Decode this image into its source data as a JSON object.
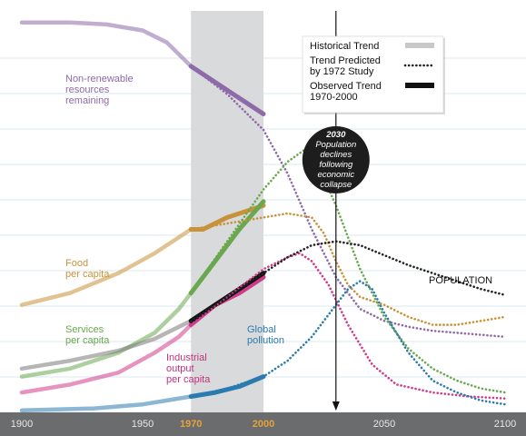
{
  "chart_data": {
    "type": "line",
    "x_range": [
      1900,
      2100
    ],
    "x_ticks": [
      {
        "value": 1900,
        "label": "1900",
        "highlight": false
      },
      {
        "value": 1950,
        "label": "1950",
        "highlight": false
      },
      {
        "value": 1970,
        "label": "1970",
        "highlight": true
      },
      {
        "value": 2000,
        "label": "2000",
        "highlight": true
      },
      {
        "value": 2050,
        "label": "2050",
        "highlight": false
      },
      {
        "value": 2100,
        "label": "2100",
        "highlight": false
      }
    ],
    "y_range": [
      0,
      100
    ],
    "grid": "horizontal",
    "shaded_period": [
      1970,
      2000
    ],
    "marker_year": 2030,
    "legend": {
      "position": "top-right",
      "items": [
        {
          "label": "Historical Trend",
          "style": "historical",
          "color": "#c8c8c8"
        },
        {
          "label": "Trend Predicted by 1972 Study",
          "style": "predicted",
          "color": "#222222"
        },
        {
          "label": "Observed Trend 1970-2000",
          "style": "observed",
          "color": "#111111"
        }
      ]
    },
    "callout": {
      "year_label": "2030",
      "lines": [
        "Population",
        "declines",
        "following",
        "economic",
        "collapse"
      ]
    },
    "series": [
      {
        "name": "Non-renewable resources remaining",
        "label_lines": [
          "Non-renewable",
          "resources",
          "remaining"
        ],
        "label_color": "#8e6aa8",
        "color": "#8e6aa8",
        "historical": [
          [
            1900,
            98
          ],
          [
            1920,
            98
          ],
          [
            1935,
            97.5
          ],
          [
            1950,
            96
          ],
          [
            1960,
            93
          ],
          [
            1970,
            87
          ]
        ],
        "observed": [
          [
            1970,
            87
          ],
          [
            1980,
            83
          ],
          [
            1990,
            79
          ],
          [
            2000,
            75
          ]
        ],
        "predicted": [
          [
            1970,
            87
          ],
          [
            1985,
            80
          ],
          [
            2000,
            71
          ],
          [
            2010,
            60
          ],
          [
            2020,
            46
          ],
          [
            2030,
            34
          ],
          [
            2040,
            26
          ],
          [
            2050,
            23
          ],
          [
            2060,
            21.5
          ],
          [
            2070,
            20.5
          ],
          [
            2080,
            20
          ],
          [
            2090,
            19.5
          ],
          [
            2100,
            19
          ]
        ]
      },
      {
        "name": "Food per capita",
        "label_lines": [
          "Food",
          "per capita"
        ],
        "label_color": "#c8923a",
        "color": "#c8923a",
        "historical": [
          [
            1900,
            27
          ],
          [
            1920,
            30
          ],
          [
            1940,
            35
          ],
          [
            1955,
            40
          ],
          [
            1965,
            44
          ],
          [
            1970,
            46
          ]
        ],
        "observed": [
          [
            1970,
            46
          ],
          [
            1975,
            46
          ],
          [
            1985,
            49
          ],
          [
            2000,
            52
          ]
        ],
        "predicted": [
          [
            1970,
            46
          ],
          [
            1985,
            47.5
          ],
          [
            2000,
            49
          ],
          [
            2010,
            50
          ],
          [
            2020,
            49
          ],
          [
            2025,
            45
          ],
          [
            2030,
            38
          ],
          [
            2035,
            32
          ],
          [
            2040,
            29
          ],
          [
            2050,
            27
          ],
          [
            2060,
            24
          ],
          [
            2070,
            22
          ],
          [
            2080,
            22
          ],
          [
            2090,
            23
          ],
          [
            2100,
            24
          ]
        ]
      },
      {
        "name": "Services per capita",
        "label_lines": [
          "Services",
          "per capita"
        ],
        "label_color": "#6aa84f",
        "color": "#6aa84f",
        "historical": [
          [
            1900,
            9
          ],
          [
            1920,
            11
          ],
          [
            1940,
            15
          ],
          [
            1955,
            20
          ],
          [
            1965,
            26
          ],
          [
            1970,
            30
          ]
        ],
        "observed": [
          [
            1970,
            30
          ],
          [
            1980,
            38
          ],
          [
            1990,
            46
          ],
          [
            2000,
            53
          ]
        ],
        "predicted": [
          [
            1970,
            30
          ],
          [
            1985,
            43
          ],
          [
            2000,
            56
          ],
          [
            2010,
            63
          ],
          [
            2017,
            66
          ],
          [
            2022,
            63
          ],
          [
            2030,
            52
          ],
          [
            2040,
            36
          ],
          [
            2050,
            24
          ],
          [
            2060,
            16
          ],
          [
            2070,
            11
          ],
          [
            2080,
            8
          ],
          [
            2090,
            6
          ],
          [
            2100,
            5
          ]
        ]
      },
      {
        "name": "Industrial output per capita",
        "label_lines": [
          "Industrial",
          "output",
          "per capita"
        ],
        "label_color": "#c4307e",
        "color": "#d03a8a",
        "historical": [
          [
            1900,
            5
          ],
          [
            1920,
            7
          ],
          [
            1940,
            10
          ],
          [
            1955,
            15
          ],
          [
            1965,
            19
          ],
          [
            1970,
            22
          ]
        ],
        "observed": [
          [
            1970,
            22
          ],
          [
            1980,
            27
          ],
          [
            1990,
            30
          ],
          [
            2000,
            34
          ]
        ],
        "predicted": [
          [
            1970,
            22
          ],
          [
            1985,
            29
          ],
          [
            2000,
            36
          ],
          [
            2010,
            39
          ],
          [
            2015,
            40
          ],
          [
            2020,
            38
          ],
          [
            2027,
            32
          ],
          [
            2035,
            22
          ],
          [
            2045,
            12
          ],
          [
            2055,
            7
          ],
          [
            2070,
            5
          ],
          [
            2085,
            4
          ],
          [
            2100,
            3.5
          ]
        ]
      },
      {
        "name": "Global pollution",
        "label_lines": [
          "Global",
          "pollution"
        ],
        "label_color": "#2b7bb0",
        "color": "#2b7bb0",
        "historical": [
          [
            1900,
            0.5
          ],
          [
            1930,
            1
          ],
          [
            1950,
            2
          ],
          [
            1960,
            3
          ],
          [
            1970,
            4
          ]
        ],
        "observed": [
          [
            1970,
            4
          ],
          [
            1980,
            5
          ],
          [
            1990,
            6.5
          ],
          [
            2000,
            9
          ]
        ],
        "predicted": [
          [
            1970,
            4
          ],
          [
            1985,
            6
          ],
          [
            2000,
            9
          ],
          [
            2010,
            13
          ],
          [
            2020,
            19
          ],
          [
            2030,
            27
          ],
          [
            2035,
            31
          ],
          [
            2040,
            33
          ],
          [
            2045,
            31
          ],
          [
            2050,
            25
          ],
          [
            2060,
            15
          ],
          [
            2070,
            8
          ],
          [
            2080,
            5
          ],
          [
            2090,
            3
          ],
          [
            2100,
            2
          ]
        ]
      },
      {
        "name": "POPULATION",
        "label_lines": [
          "POPULATION"
        ],
        "label_color": "#111111",
        "color": "#7a7a7a",
        "historical": [
          [
            1900,
            11
          ],
          [
            1920,
            13
          ],
          [
            1940,
            15.5
          ],
          [
            1955,
            18.5
          ],
          [
            1965,
            21.5
          ],
          [
            1970,
            23
          ]
        ],
        "observed": [
          [
            1970,
            23
          ],
          [
            1980,
            27
          ],
          [
            1990,
            31
          ],
          [
            2000,
            35
          ]
        ],
        "observed_color": "#111111",
        "predicted": [
          [
            1970,
            23
          ],
          [
            1985,
            29
          ],
          [
            2000,
            35
          ],
          [
            2010,
            39
          ],
          [
            2020,
            42
          ],
          [
            2030,
            43
          ],
          [
            2040,
            42
          ],
          [
            2050,
            39.5
          ],
          [
            2060,
            37
          ],
          [
            2070,
            35
          ],
          [
            2080,
            33
          ],
          [
            2090,
            31
          ],
          [
            2100,
            29.5
          ]
        ],
        "predicted_color": "#222222"
      }
    ]
  }
}
